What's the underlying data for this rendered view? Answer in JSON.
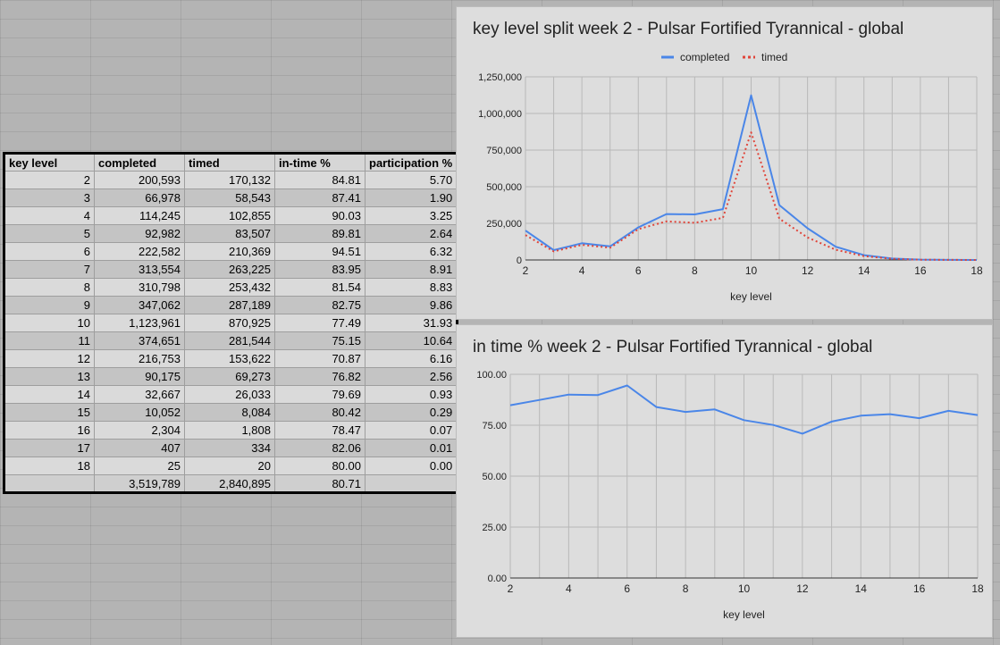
{
  "table": {
    "headers": [
      "key level",
      "completed",
      "timed",
      "in-time %",
      "participation %"
    ],
    "rows": [
      [
        "2",
        "200,593",
        "170,132",
        "84.81",
        "5.70"
      ],
      [
        "3",
        "66,978",
        "58,543",
        "87.41",
        "1.90"
      ],
      [
        "4",
        "114,245",
        "102,855",
        "90.03",
        "3.25"
      ],
      [
        "5",
        "92,982",
        "83,507",
        "89.81",
        "2.64"
      ],
      [
        "6",
        "222,582",
        "210,369",
        "94.51",
        "6.32"
      ],
      [
        "7",
        "313,554",
        "263,225",
        "83.95",
        "8.91"
      ],
      [
        "8",
        "310,798",
        "253,432",
        "81.54",
        "8.83"
      ],
      [
        "9",
        "347,062",
        "287,189",
        "82.75",
        "9.86"
      ],
      [
        "10",
        "1,123,961",
        "870,925",
        "77.49",
        "31.93"
      ],
      [
        "11",
        "374,651",
        "281,544",
        "75.15",
        "10.64"
      ],
      [
        "12",
        "216,753",
        "153,622",
        "70.87",
        "6.16"
      ],
      [
        "13",
        "90,175",
        "69,273",
        "76.82",
        "2.56"
      ],
      [
        "14",
        "32,667",
        "26,033",
        "79.69",
        "0.93"
      ],
      [
        "15",
        "10,052",
        "8,084",
        "80.42",
        "0.29"
      ],
      [
        "16",
        "2,304",
        "1,808",
        "78.47",
        "0.07"
      ],
      [
        "17",
        "407",
        "334",
        "82.06",
        "0.01"
      ],
      [
        "18",
        "25",
        "20",
        "80.00",
        "0.00"
      ]
    ],
    "totals": [
      "",
      "3,519,789",
      "2,840,895",
      "80.71",
      ""
    ]
  },
  "chart_data": [
    {
      "type": "line",
      "title": "key level split week 2 - Pulsar Fortified Tyrannical - global",
      "xlabel": "key level",
      "ylabel": "",
      "x": [
        2,
        3,
        4,
        5,
        6,
        7,
        8,
        9,
        10,
        11,
        12,
        13,
        14,
        15,
        16,
        17,
        18
      ],
      "xticks": [
        "2",
        "4",
        "6",
        "8",
        "10",
        "12",
        "14",
        "16",
        "18"
      ],
      "yticks": [
        "0",
        "250,000",
        "500,000",
        "750,000",
        "1,000,000",
        "1,250,000"
      ],
      "ylim": [
        0,
        1250000
      ],
      "xlim": [
        2,
        18
      ],
      "grid": true,
      "legend": "top",
      "series": [
        {
          "name": "completed",
          "color": "#4a86e8",
          "style": "solid",
          "values": [
            200593,
            66978,
            114245,
            92982,
            222582,
            313554,
            310798,
            347062,
            1123961,
            374651,
            216753,
            90175,
            32667,
            10052,
            2304,
            407,
            25
          ]
        },
        {
          "name": "timed",
          "color": "#e0453a",
          "style": "dotted",
          "values": [
            170132,
            58543,
            102855,
            83507,
            210369,
            263225,
            253432,
            287189,
            870925,
            281544,
            153622,
            69273,
            26033,
            8084,
            1808,
            334,
            20
          ]
        }
      ]
    },
    {
      "type": "line",
      "title": "in time % week 2 - Pulsar Fortified Tyrannical - global",
      "xlabel": "key level",
      "ylabel": "",
      "x": [
        2,
        3,
        4,
        5,
        6,
        7,
        8,
        9,
        10,
        11,
        12,
        13,
        14,
        15,
        16,
        17,
        18
      ],
      "xticks": [
        "2",
        "4",
        "6",
        "8",
        "10",
        "12",
        "14",
        "16",
        "18"
      ],
      "yticks": [
        "0.00",
        "25.00",
        "50.00",
        "75.00",
        "100.00"
      ],
      "ylim": [
        0,
        100
      ],
      "xlim": [
        2,
        18
      ],
      "grid": true,
      "legend": "none",
      "series": [
        {
          "color": "#4a86e8",
          "style": "solid",
          "values": [
            84.81,
            87.41,
            90.03,
            89.81,
            94.51,
            83.95,
            81.54,
            82.75,
            77.49,
            75.15,
            70.87,
            76.82,
            79.69,
            80.42,
            78.47,
            82.06,
            80.0
          ]
        }
      ]
    }
  ]
}
